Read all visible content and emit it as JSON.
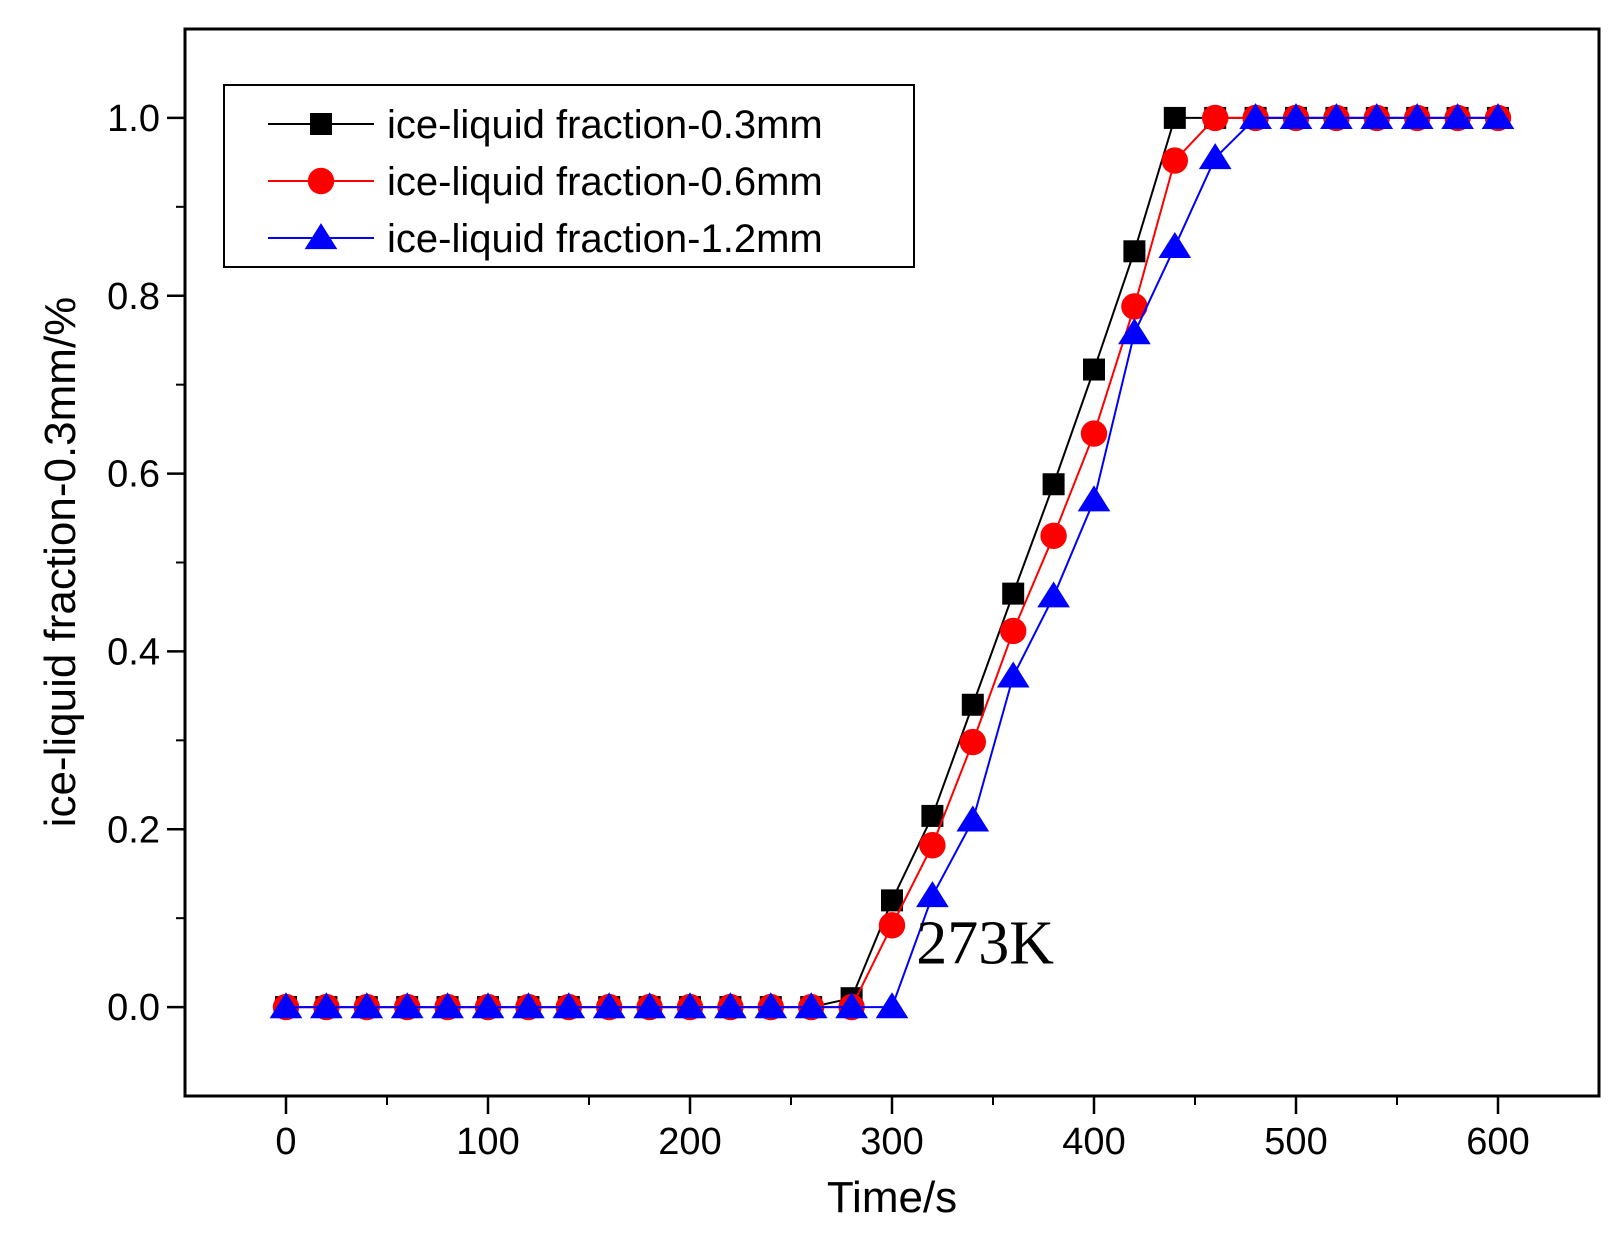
{
  "chart_data": {
    "type": "line",
    "title": "",
    "xlabel": "Time/s",
    "ylabel": "ice-liquid fraction-0.3mm/%",
    "xlim": [
      -50,
      650
    ],
    "ylim": [
      -0.1,
      1.1
    ],
    "xticks": [
      0,
      100,
      200,
      300,
      400,
      500,
      600
    ],
    "xtick_labels": [
      "0",
      "100",
      "200",
      "300",
      "400",
      "500",
      "600"
    ],
    "yticks": [
      0.0,
      0.2,
      0.4,
      0.6,
      0.8,
      1.0
    ],
    "ytick_labels": [
      "0.0",
      "0.2",
      "0.4",
      "0.6",
      "0.8",
      "1.0"
    ],
    "legend_position": "top-left",
    "grid": false,
    "annotation": {
      "text": "273K",
      "x": 312,
      "y": 0.06
    },
    "x": [
      0,
      20,
      40,
      60,
      80,
      100,
      120,
      140,
      160,
      180,
      200,
      220,
      240,
      260,
      280,
      300,
      320,
      340,
      360,
      380,
      400,
      420,
      440,
      460,
      480,
      500,
      520,
      540,
      560,
      580,
      600
    ],
    "series": [
      {
        "name": "ice-liquid fraction-0.3mm",
        "color": "#000000",
        "marker": "square",
        "values": [
          0,
          0,
          0,
          0,
          0,
          0,
          0,
          0,
          0,
          0,
          0,
          0,
          0,
          0,
          0.01,
          0.12,
          0.215,
          0.34,
          0.465,
          0.588,
          0.717,
          0.85,
          1.0,
          1.0,
          1.0,
          1.0,
          1.0,
          1.0,
          1.0,
          1.0,
          1.0
        ]
      },
      {
        "name": "ice-liquid fraction-0.6mm",
        "color": "#ff0000",
        "marker": "circle",
        "values": [
          0,
          0,
          0,
          0,
          0,
          0,
          0,
          0,
          0,
          0,
          0,
          0,
          0,
          0,
          0,
          0.092,
          0.182,
          0.298,
          0.423,
          0.53,
          0.645,
          0.788,
          0.952,
          1.0,
          1.0,
          1.0,
          1.0,
          1.0,
          1.0,
          1.0,
          1.0
        ]
      },
      {
        "name": "ice-liquid fraction-1.2mm",
        "color": "#0000ff",
        "marker": "triangle",
        "values": [
          0,
          0,
          0,
          0,
          0,
          0,
          0,
          0,
          0,
          0,
          0,
          0,
          0,
          0,
          0,
          0,
          0.125,
          0.21,
          0.372,
          0.462,
          0.57,
          0.758,
          0.855,
          0.955,
          1.0,
          1.0,
          1.0,
          1.0,
          1.0,
          1.0,
          1.0
        ]
      }
    ]
  }
}
